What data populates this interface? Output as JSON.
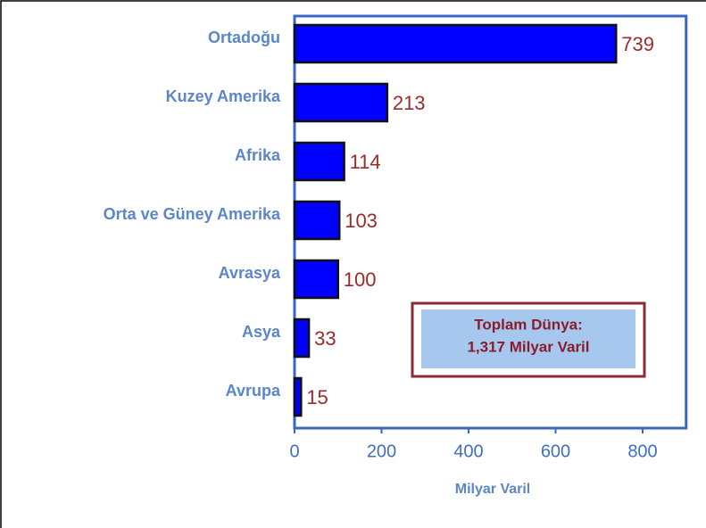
{
  "chart_data": {
    "type": "bar",
    "orientation": "horizontal",
    "categories": [
      "Ortadoğu",
      "Kuzey Amerika",
      "Afrika",
      "Orta ve Güney Amerika",
      "Avrasya",
      "Asya",
      "Avrupa"
    ],
    "values": [
      739,
      213,
      114,
      103,
      100,
      33,
      15
    ],
    "color": "#0000ff",
    "xlabel": "Milyar Varil",
    "xlim": [
      0,
      900
    ],
    "xticks": [
      0,
      200,
      400,
      600,
      800
    ],
    "annotation": [
      "Toplam Dünya:",
      "1,317 Milyar Varil"
    ]
  }
}
